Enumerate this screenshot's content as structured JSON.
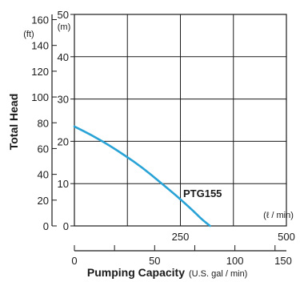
{
  "chart_data": {
    "type": "line",
    "series": [
      {
        "name": "PTG155",
        "x_lmin": [
          0,
          40,
          80,
          120,
          160,
          200,
          240,
          280,
          300,
          320
        ],
        "y_m": [
          23.5,
          21.5,
          19.2,
          16.6,
          13.8,
          10.5,
          7.2,
          3.6,
          1.6,
          0
        ],
        "color": "#29a3d6"
      }
    ],
    "axes": {
      "left_ft": {
        "label": "Total Head",
        "unit": "(ft)",
        "ticks": [
          "160",
          "140",
          "120",
          "100",
          "80",
          "60",
          "40",
          "20",
          "0"
        ]
      },
      "left_m": {
        "unit": "(m)",
        "ticks": [
          "50",
          "40",
          "30",
          "20",
          "10",
          "0"
        ],
        "ylim": [
          0,
          50
        ]
      },
      "bottom_lmin": {
        "unit": "(ℓ / min)",
        "ticks": [
          "250",
          "500"
        ],
        "xlim": [
          0,
          500
        ]
      },
      "bottom_gpm": {
        "label": "Pumping Capacity",
        "unit": "(U.S. gal / min)",
        "ticks": [
          "0",
          "50",
          "100",
          "150"
        ]
      }
    },
    "grid": true
  }
}
